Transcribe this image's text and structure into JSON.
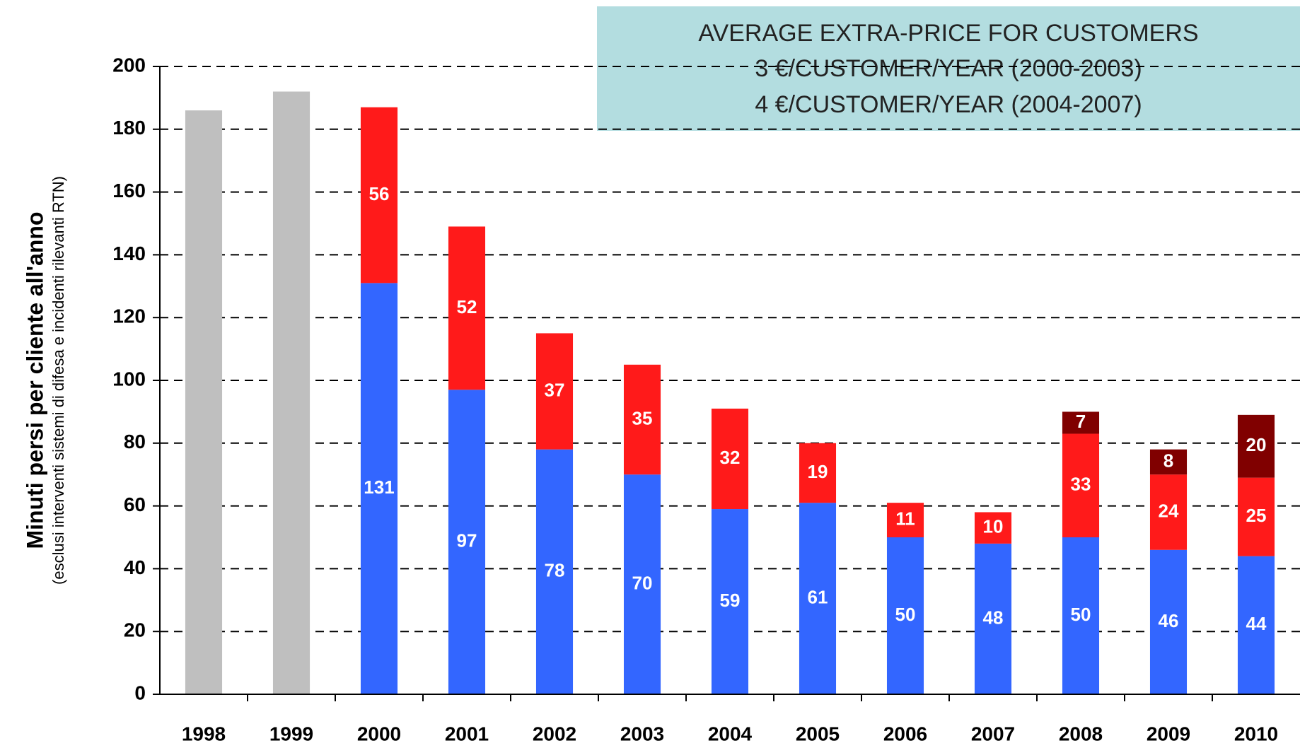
{
  "chart_data": {
    "type": "stacked_bar",
    "ylabel": "Minuti persi per cliente all'anno",
    "ylabel_sub": "(esclusi interventi sistemi di difesa e incidenti rilevanti RTN)",
    "annotation": [
      "AVERAGE EXTRA-PRICE FOR CUSTOMERS",
      "3 €/CUSTOMER/YEAR (2000-2003)",
      "4 €/CUSTOMER/YEAR (2004-2007)"
    ],
    "categories": [
      "1998",
      "1999",
      "2000",
      "2001",
      "2002",
      "2003",
      "2004",
      "2005",
      "2006",
      "2007",
      "2008",
      "2009",
      "2010"
    ],
    "series": [
      {
        "color": "#bfbfbf",
        "show_labels": false,
        "values": [
          186,
          192,
          null,
          null,
          null,
          null,
          null,
          null,
          null,
          null,
          null,
          null,
          null
        ]
      },
      {
        "color": "#3366ff",
        "show_labels": true,
        "values": [
          null,
          null,
          131,
          97,
          78,
          70,
          59,
          61,
          50,
          48,
          50,
          46,
          44
        ]
      },
      {
        "color": "#ff1a1a",
        "show_labels": true,
        "values": [
          null,
          null,
          56,
          52,
          37,
          35,
          32,
          19,
          11,
          10,
          33,
          24,
          25
        ]
      },
      {
        "color": "#800000",
        "show_labels": true,
        "values": [
          null,
          null,
          null,
          null,
          null,
          null,
          null,
          null,
          null,
          null,
          7,
          8,
          20
        ]
      }
    ],
    "ylim": [
      0,
      200
    ],
    "yticks": [
      0,
      20,
      40,
      60,
      80,
      100,
      120,
      140,
      160,
      180,
      200
    ],
    "grid": true
  }
}
